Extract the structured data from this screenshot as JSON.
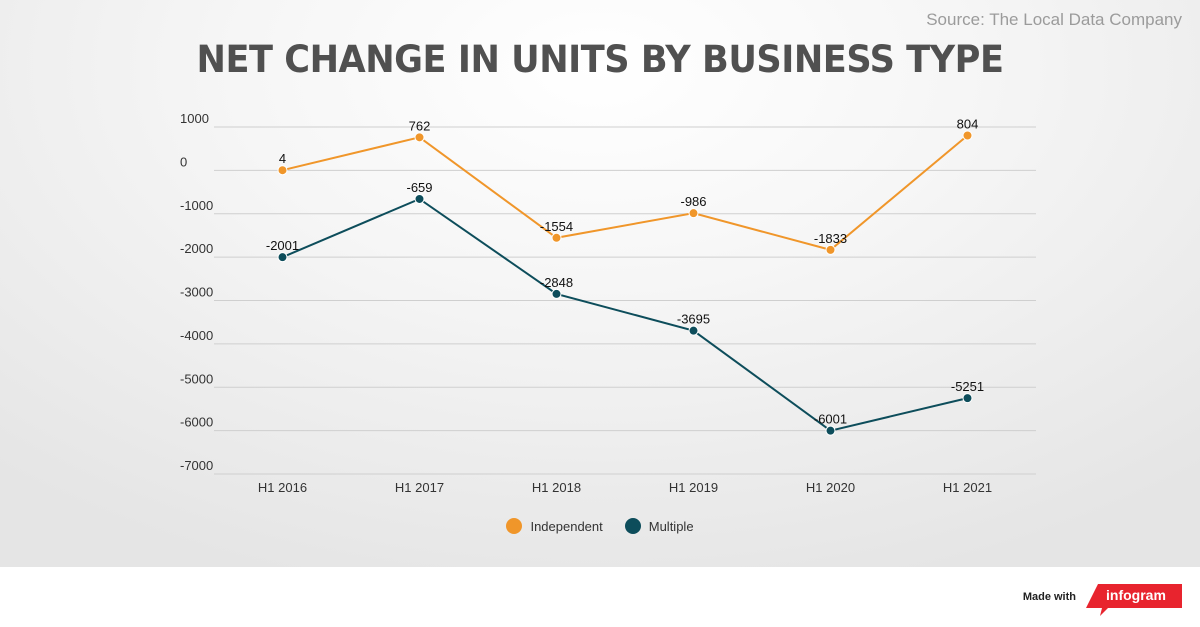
{
  "source": "Source: The Local Data Company",
  "title": "NET CHANGE IN UNITS BY BUSINESS TYPE",
  "footer": {
    "made_with": "Made with",
    "brand": "infogram",
    "brand_color": "#e8242e"
  },
  "chart_data": {
    "type": "line",
    "title": "NET CHANGE IN UNITS BY BUSINESS TYPE",
    "xlabel": "",
    "ylabel": "",
    "x": [
      "H1 2016",
      "H1 2017",
      "H1 2018",
      "H1 2019",
      "H1 2020",
      "H1 2021"
    ],
    "ylim": [
      -7000,
      1000
    ],
    "yticks": [
      "1000",
      "0",
      "-1000",
      "-2000",
      "-3000",
      "-4000",
      "-5000",
      "-6000",
      "-7000"
    ],
    "grid": true,
    "legend_position": "bottom",
    "series": [
      {
        "name": "Independent",
        "color": "#f0962a",
        "values": [
          4,
          762,
          -1554,
          -986,
          -1833,
          804
        ],
        "labels": [
          "4",
          "762",
          "-1554",
          "-986",
          "-1833",
          "804"
        ]
      },
      {
        "name": "Multiple",
        "color": "#0d4d5b",
        "values": [
          -2001,
          -659,
          -2848,
          -3695,
          -6001,
          -5251
        ],
        "labels": [
          "-2001",
          "-659",
          "-2848",
          "-3695",
          "-6001",
          "-5251"
        ]
      }
    ]
  }
}
